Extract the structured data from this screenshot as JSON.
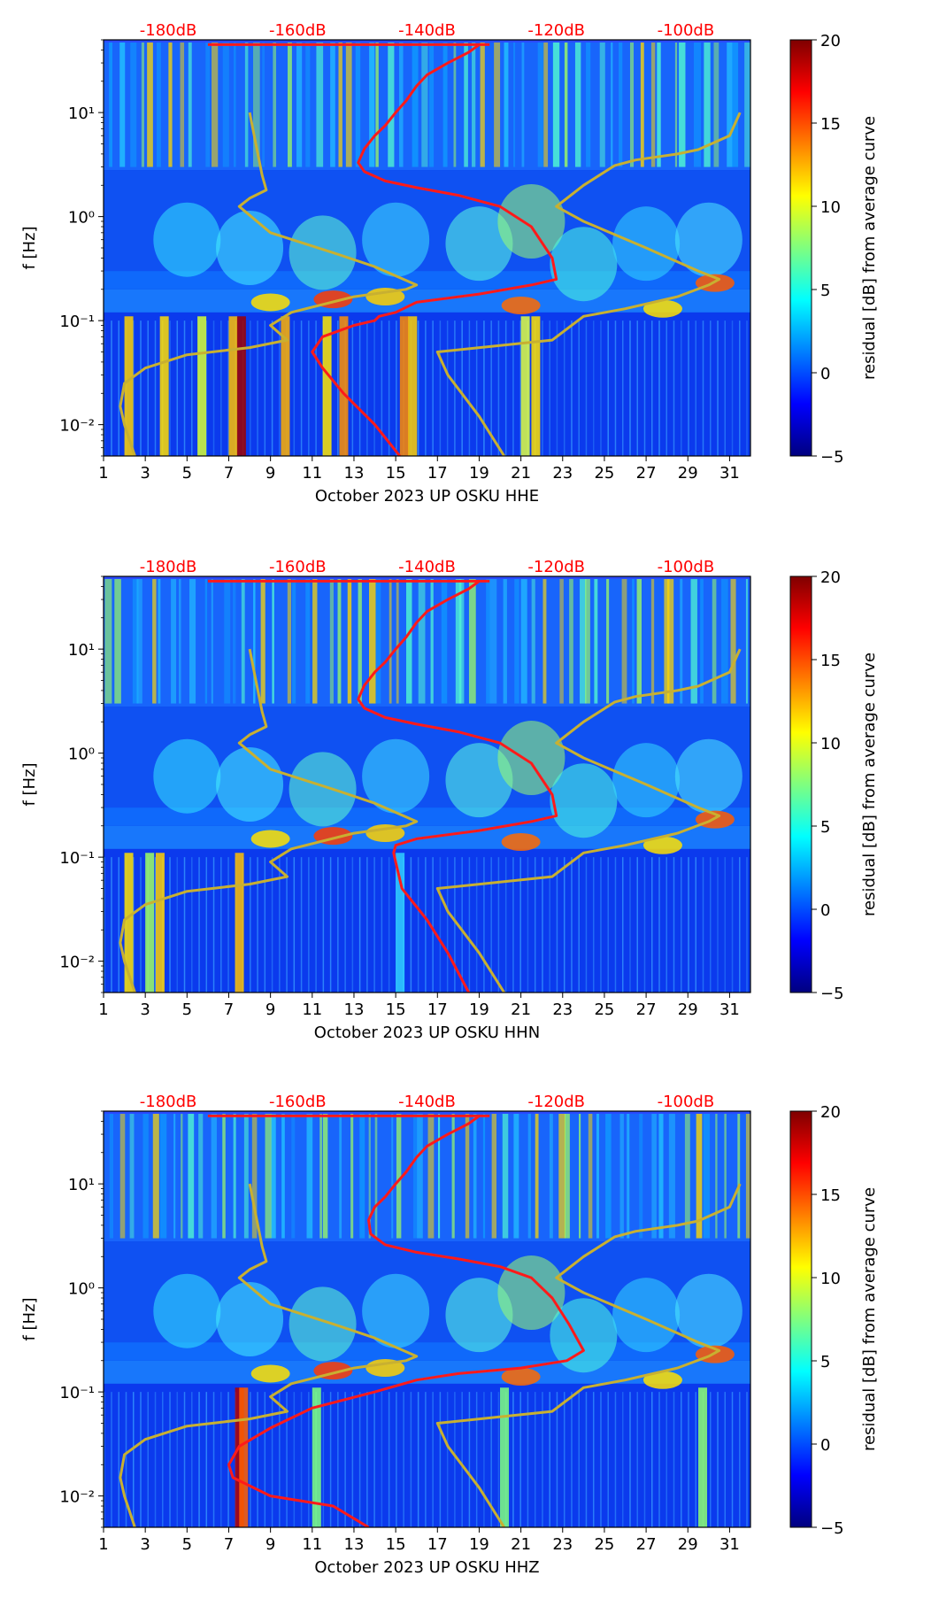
{
  "colors": {
    "psd_curve": "#ff1a1a",
    "noise_model": "#c8b031",
    "top_label": "#ff0000",
    "colormap": [
      "#00007f",
      "#0000ff",
      "#007fff",
      "#00ffff",
      "#7fff7f",
      "#ffff00",
      "#ff7f00",
      "#ff0000",
      "#7f0000"
    ]
  },
  "colorbar": {
    "label": "residual [dB] from average curve",
    "ticks": [
      "20",
      "15",
      "10",
      "5",
      "0",
      "−5"
    ],
    "range": [
      -5,
      20
    ]
  },
  "chart_data": [
    {
      "type": "heatmap",
      "title": "",
      "xlabel": "October 2023 UP OSKU  HHE",
      "ylabel": "f [Hz]",
      "xlim": [
        1,
        32
      ],
      "ylim_hz": [
        0.005,
        50
      ],
      "yscale": "log",
      "x_tick_labels": [
        "1",
        "3",
        "5",
        "7",
        "9",
        "11",
        "13",
        "15",
        "17",
        "19",
        "21",
        "23",
        "25",
        "27",
        "29",
        "31"
      ],
      "y_tick_labels": [
        "10⁻²",
        "10⁻¹",
        "10⁰",
        "10¹"
      ],
      "top_axis_labels": [
        "-180dB",
        "-160dB",
        "-140dB",
        "-120dB",
        "-100dB"
      ],
      "top_axis_db_range": [
        -190,
        -90
      ],
      "series": [
        {
          "name": "PSD curve",
          "x": [
            19,
            18.5,
            17.5,
            16.5,
            16,
            15.5,
            15,
            14.5,
            14,
            13.5,
            13.2,
            13.5,
            14.5,
            16,
            18,
            20,
            21.5,
            22.5,
            22.7,
            21.5,
            19,
            16,
            15,
            14.2,
            14,
            13,
            11.5,
            11,
            11.5,
            12.5,
            14,
            15.2
          ],
          "f": [
            45,
            38,
            30,
            23,
            18,
            13,
            10,
            7.5,
            6,
            4.5,
            3.3,
            2.7,
            2.2,
            1.9,
            1.6,
            1.25,
            0.8,
            0.4,
            0.25,
            0.22,
            0.18,
            0.15,
            0.12,
            0.11,
            0.1,
            0.09,
            0.07,
            0.05,
            0.035,
            0.02,
            0.01,
            0.005
          ],
          "color": "red"
        },
        {
          "name": "Noise model",
          "x": [
            8,
            8.3,
            8.6,
            8.8,
            8,
            7.5,
            9,
            12,
            14,
            16,
            15.5,
            13,
            10,
            9,
            9.8,
            8,
            5,
            3,
            2,
            1.8,
            2,
            2.5
          ],
          "f": [
            10,
            5,
            2.5,
            1.8,
            1.5,
            1.25,
            0.7,
            0.45,
            0.33,
            0.22,
            0.2,
            0.17,
            0.12,
            0.09,
            0.065,
            0.055,
            0.047,
            0.035,
            0.025,
            0.015,
            0.01,
            0.005
          ],
          "color": "gold"
        },
        {
          "name": "Noise model high",
          "x": [
            31.5,
            31,
            29.5,
            28.5,
            26.5,
            25.5,
            24,
            22.7,
            24,
            27,
            29.5,
            30.5,
            30,
            28.5,
            26,
            24,
            22.5,
            17,
            17.5,
            19,
            20.2
          ],
          "f": [
            10,
            6,
            4.4,
            4,
            3.5,
            3.1,
            2,
            1.25,
            0.9,
            0.5,
            0.3,
            0.25,
            0.22,
            0.17,
            0.13,
            0.11,
            0.065,
            0.05,
            0.03,
            0.012,
            0.005
          ],
          "color": "gold"
        }
      ]
    },
    {
      "type": "heatmap",
      "title": "",
      "xlabel": "October 2023 UP OSKU  HHN",
      "ylabel": "f [Hz]",
      "xlim": [
        1,
        32
      ],
      "ylim_hz": [
        0.005,
        50
      ],
      "yscale": "log",
      "x_tick_labels": [
        "1",
        "3",
        "5",
        "7",
        "9",
        "11",
        "13",
        "15",
        "17",
        "19",
        "21",
        "23",
        "25",
        "27",
        "29",
        "31"
      ],
      "y_tick_labels": [
        "10⁻²",
        "10⁻¹",
        "10⁰",
        "10¹"
      ],
      "top_axis_labels": [
        "-180dB",
        "-160dB",
        "-140dB",
        "-120dB",
        "-100dB"
      ],
      "top_axis_db_range": [
        -190,
        -90
      ],
      "series": [
        {
          "name": "PSD curve",
          "x": [
            19,
            18.5,
            17.5,
            16.5,
            16,
            15.5,
            15,
            14.5,
            14,
            13.5,
            13.2,
            13.5,
            14.5,
            16,
            18,
            20,
            21.5,
            22.5,
            22.7,
            21.5,
            19,
            16,
            15,
            14.9,
            15,
            15.3,
            16.5,
            17.5,
            18.5
          ],
          "f": [
            45,
            38,
            30,
            23,
            18,
            13,
            10,
            7.5,
            6,
            4.5,
            3.3,
            2.7,
            2.2,
            1.9,
            1.6,
            1.25,
            0.8,
            0.4,
            0.25,
            0.22,
            0.18,
            0.15,
            0.13,
            0.11,
            0.09,
            0.05,
            0.025,
            0.012,
            0.005
          ],
          "color": "red"
        },
        {
          "name": "Noise model",
          "x": [
            8,
            8.3,
            8.6,
            8.8,
            8,
            7.5,
            9,
            12,
            14,
            16,
            15.5,
            13,
            10,
            9,
            9.8,
            8,
            5,
            3,
            2,
            1.8,
            2,
            2.5
          ],
          "f": [
            10,
            5,
            2.5,
            1.8,
            1.5,
            1.25,
            0.7,
            0.45,
            0.33,
            0.22,
            0.2,
            0.17,
            0.12,
            0.09,
            0.065,
            0.055,
            0.047,
            0.035,
            0.025,
            0.015,
            0.01,
            0.005
          ],
          "color": "gold"
        },
        {
          "name": "Noise model high",
          "x": [
            31.5,
            31,
            29.5,
            28.5,
            26.5,
            25.5,
            24,
            22.7,
            24,
            27,
            29.5,
            30.5,
            30,
            28.5,
            26,
            24,
            22.5,
            17,
            17.5,
            19,
            20.2
          ],
          "f": [
            10,
            6,
            4.4,
            4,
            3.5,
            3.1,
            2,
            1.25,
            0.9,
            0.5,
            0.3,
            0.25,
            0.22,
            0.17,
            0.13,
            0.11,
            0.065,
            0.05,
            0.03,
            0.012,
            0.005
          ],
          "color": "gold"
        }
      ]
    },
    {
      "type": "heatmap",
      "title": "",
      "xlabel": "October 2023 UP OSKU  HHZ",
      "ylabel": "f [Hz]",
      "xlim": [
        1,
        32
      ],
      "ylim_hz": [
        0.005,
        50
      ],
      "yscale": "log",
      "x_tick_labels": [
        "1",
        "3",
        "5",
        "7",
        "9",
        "11",
        "13",
        "15",
        "17",
        "19",
        "21",
        "23",
        "25",
        "27",
        "29",
        "31"
      ],
      "y_tick_labels": [
        "10⁻²",
        "10⁻¹",
        "10⁰",
        "10¹"
      ],
      "top_axis_labels": [
        "-180dB",
        "-160dB",
        "-140dB",
        "-120dB",
        "-100dB"
      ],
      "top_axis_db_range": [
        -190,
        -90
      ],
      "series": [
        {
          "name": "PSD curve",
          "x": [
            19,
            18.5,
            17.5,
            16.5,
            16,
            15.5,
            15,
            14.5,
            14,
            13.7,
            13.8,
            14.5,
            16,
            18,
            20,
            21.5,
            22.5,
            23.3,
            24,
            23.2,
            21,
            18,
            16,
            14,
            11,
            9,
            7.5,
            7,
            7.2,
            9,
            12,
            13.7
          ],
          "f": [
            45,
            38,
            30,
            23,
            18,
            13,
            10,
            7.5,
            6,
            4.5,
            3.3,
            2.6,
            2.2,
            1.9,
            1.6,
            1.25,
            0.8,
            0.45,
            0.25,
            0.2,
            0.17,
            0.15,
            0.13,
            0.1,
            0.07,
            0.045,
            0.03,
            0.02,
            0.015,
            0.01,
            0.008,
            0.005
          ],
          "color": "red"
        },
        {
          "name": "Noise model",
          "x": [
            8,
            8.3,
            8.6,
            8.8,
            8,
            7.5,
            9,
            12,
            14,
            16,
            15.5,
            13,
            10,
            9,
            9.8,
            8,
            5,
            3,
            2,
            1.8,
            2,
            2.5
          ],
          "f": [
            10,
            5,
            2.5,
            1.8,
            1.5,
            1.25,
            0.7,
            0.45,
            0.33,
            0.22,
            0.2,
            0.17,
            0.12,
            0.09,
            0.065,
            0.055,
            0.047,
            0.035,
            0.025,
            0.015,
            0.01,
            0.005
          ],
          "color": "gold"
        },
        {
          "name": "Noise model high",
          "x": [
            31.5,
            31,
            29.5,
            28.5,
            26.5,
            25.5,
            24,
            22.7,
            24,
            27,
            29.5,
            30.5,
            30,
            28.5,
            26,
            24,
            22.5,
            17,
            17.5,
            19,
            20.2
          ],
          "f": [
            10,
            6,
            4.4,
            4,
            3.5,
            3.1,
            2,
            1.25,
            0.9,
            0.5,
            0.3,
            0.25,
            0.22,
            0.17,
            0.13,
            0.11,
            0.065,
            0.05,
            0.03,
            0.012,
            0.005
          ],
          "color": "gold"
        }
      ]
    }
  ]
}
